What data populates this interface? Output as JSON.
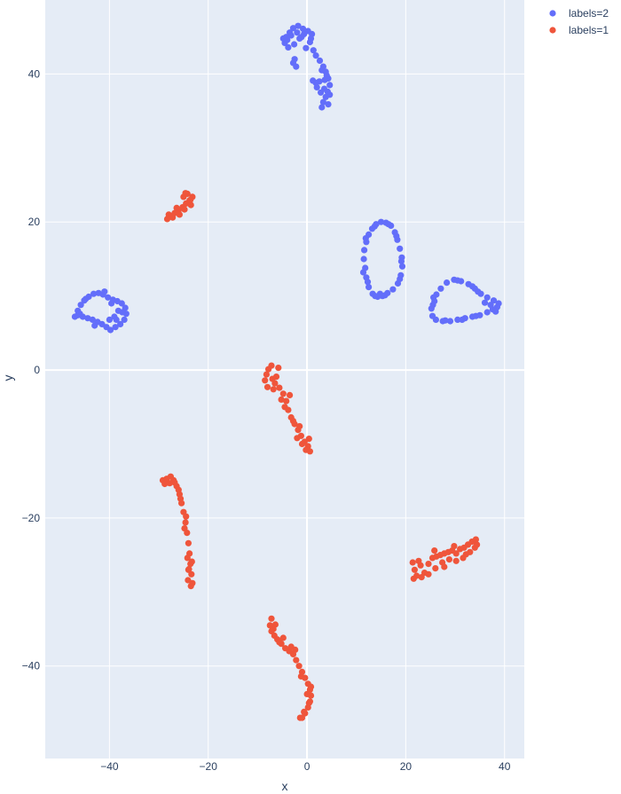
{
  "chart_data": {
    "type": "scatter",
    "title": "",
    "xlabel": "x",
    "ylabel": "y",
    "xlim": [
      -53,
      44
    ],
    "ylim": [
      -52.5,
      50
    ],
    "xticks": [
      -40,
      -20,
      0,
      20,
      40
    ],
    "yticks": [
      -40,
      -20,
      0,
      20,
      40
    ],
    "xtick_labels": [
      "−40",
      "−20",
      "0",
      "20",
      "40"
    ],
    "ytick_labels": [
      "−40",
      "−20",
      "0",
      "20",
      "40"
    ],
    "grid": true,
    "legend_position": "top-right",
    "series": [
      {
        "name": "labels=2",
        "color": "#636efa",
        "points": [
          [
            -4.5,
            44.2
          ],
          [
            -4.2,
            45.0
          ],
          [
            -3.5,
            45.6
          ],
          [
            -2.8,
            46.2
          ],
          [
            -1.8,
            46.5
          ],
          [
            -0.8,
            46.1
          ],
          [
            0.2,
            45.8
          ],
          [
            1.0,
            45.4
          ],
          [
            0.6,
            44.3
          ],
          [
            -0.2,
            43.5
          ],
          [
            -1.5,
            44.8
          ],
          [
            -2.6,
            44.0
          ],
          [
            -3.8,
            43.6
          ],
          [
            1.3,
            43.2
          ],
          [
            1.8,
            42.5
          ],
          [
            2.6,
            41.8
          ],
          [
            3.3,
            41.0
          ],
          [
            3.8,
            40.3
          ],
          [
            4.3,
            39.4
          ],
          [
            4.6,
            38.5
          ],
          [
            4.2,
            37.6
          ],
          [
            3.8,
            36.9
          ],
          [
            3.3,
            36.2
          ],
          [
            3.0,
            35.5
          ],
          [
            4.3,
            35.9
          ],
          [
            2.5,
            39.0
          ],
          [
            1.8,
            38.8
          ],
          [
            1.2,
            39.1
          ],
          [
            3.5,
            38.0
          ],
          [
            2.8,
            37.5
          ],
          [
            4.0,
            39.8
          ],
          [
            3.0,
            40.5
          ],
          [
            -2.5,
            42.0
          ],
          [
            -2.2,
            41.0
          ],
          [
            -2.8,
            41.5
          ],
          [
            -4.8,
            44.8
          ],
          [
            -4.0,
            44.6
          ],
          [
            -3.2,
            45.2
          ],
          [
            -2.0,
            45.6
          ],
          [
            -0.6,
            45.4
          ],
          [
            0.8,
            44.8
          ],
          [
            -1.1,
            45.0
          ],
          [
            2.0,
            38.2
          ],
          [
            4.6,
            37.2
          ],
          [
            3.6,
            39.2
          ],
          [
            11.8,
            13.8
          ],
          [
            11.5,
            15.0
          ],
          [
            11.6,
            16.2
          ],
          [
            12.0,
            17.3
          ],
          [
            12.5,
            18.3
          ],
          [
            13.2,
            19.1
          ],
          [
            14.0,
            19.7
          ],
          [
            15.0,
            20.0
          ],
          [
            16.0,
            19.9
          ],
          [
            17.0,
            19.5
          ],
          [
            17.8,
            18.6
          ],
          [
            18.3,
            17.6
          ],
          [
            18.8,
            16.4
          ],
          [
            19.2,
            15.2
          ],
          [
            19.3,
            14.0
          ],
          [
            19.0,
            12.8
          ],
          [
            18.4,
            11.7
          ],
          [
            17.4,
            10.9
          ],
          [
            16.3,
            10.4
          ],
          [
            15.3,
            10.0
          ],
          [
            14.3,
            9.9
          ],
          [
            13.3,
            10.3
          ],
          [
            12.5,
            11.2
          ],
          [
            12.0,
            12.5
          ],
          [
            13.8,
            10.0
          ],
          [
            14.8,
            10.3
          ],
          [
            11.4,
            13.2
          ],
          [
            11.9,
            17.8
          ],
          [
            13.7,
            19.4
          ],
          [
            16.5,
            19.7
          ],
          [
            18.1,
            18.1
          ],
          [
            19.1,
            14.7
          ],
          [
            18.8,
            12.3
          ],
          [
            15.8,
            10.1
          ],
          [
            12.3,
            11.9
          ],
          [
            25.8,
            9.3
          ],
          [
            25.2,
            8.3
          ],
          [
            25.4,
            7.3
          ],
          [
            26.1,
            6.8
          ],
          [
            27.5,
            6.6
          ],
          [
            29.0,
            6.6
          ],
          [
            30.5,
            6.8
          ],
          [
            32.0,
            7.0
          ],
          [
            33.5,
            7.2
          ],
          [
            35.0,
            7.4
          ],
          [
            36.5,
            7.8
          ],
          [
            37.6,
            8.2
          ],
          [
            38.5,
            8.5
          ],
          [
            38.8,
            9.0
          ],
          [
            37.8,
            9.4
          ],
          [
            36.5,
            9.8
          ],
          [
            35.2,
            10.3
          ],
          [
            34.0,
            11.0
          ],
          [
            32.7,
            11.6
          ],
          [
            31.2,
            12.0
          ],
          [
            29.8,
            12.2
          ],
          [
            28.3,
            11.8
          ],
          [
            27.1,
            11.0
          ],
          [
            26.2,
            10.2
          ],
          [
            25.6,
            9.8
          ],
          [
            38.2,
            7.9
          ],
          [
            37.2,
            8.8
          ],
          [
            34.6,
            10.6
          ],
          [
            30.5,
            12.1
          ],
          [
            25.5,
            8.8
          ],
          [
            28.0,
            6.7
          ],
          [
            31.4,
            6.8
          ],
          [
            34.2,
            7.3
          ],
          [
            36.0,
            9.1
          ],
          [
            33.5,
            11.3
          ],
          [
            -47.0,
            7.2
          ],
          [
            -46.4,
            8.0
          ],
          [
            -45.8,
            8.8
          ],
          [
            -45.1,
            9.4
          ],
          [
            -44.2,
            9.9
          ],
          [
            -43.2,
            10.3
          ],
          [
            -42.2,
            10.4
          ],
          [
            -41.3,
            10.2
          ],
          [
            -40.3,
            9.8
          ],
          [
            -39.3,
            9.5
          ],
          [
            -38.4,
            9.3
          ],
          [
            -37.5,
            9.0
          ],
          [
            -36.8,
            8.4
          ],
          [
            -36.6,
            7.6
          ],
          [
            -37.0,
            6.8
          ],
          [
            -37.8,
            6.2
          ],
          [
            -38.8,
            5.8
          ],
          [
            -39.8,
            5.4
          ],
          [
            -40.6,
            5.8
          ],
          [
            -41.5,
            6.2
          ],
          [
            -42.4,
            6.5
          ],
          [
            -43.4,
            6.8
          ],
          [
            -44.4,
            7.0
          ],
          [
            -45.4,
            7.2
          ],
          [
            -46.4,
            7.4
          ],
          [
            -39.0,
            7.2
          ],
          [
            -38.2,
            8.0
          ],
          [
            -40.0,
            6.8
          ],
          [
            -37.4,
            7.8
          ],
          [
            -43.0,
            6.0
          ],
          [
            -39.6,
            9.0
          ],
          [
            -44.8,
            9.6
          ],
          [
            -41.0,
            10.6
          ],
          [
            -46.0,
            7.6
          ],
          [
            -38.6,
            6.8
          ]
        ]
      },
      {
        "name": "labels=1",
        "color": "#ef553b",
        "points": [
          [
            -28.3,
            20.4
          ],
          [
            -27.6,
            20.8
          ],
          [
            -26.8,
            21.2
          ],
          [
            -26.0,
            21.6
          ],
          [
            -25.2,
            22.0
          ],
          [
            -24.5,
            22.5
          ],
          [
            -23.8,
            22.9
          ],
          [
            -23.2,
            23.4
          ],
          [
            -23.5,
            22.3
          ],
          [
            -24.2,
            23.8
          ],
          [
            -25.0,
            23.4
          ],
          [
            -24.8,
            21.7
          ],
          [
            -27.2,
            20.6
          ],
          [
            -25.8,
            21.0
          ],
          [
            -23.6,
            23.0
          ],
          [
            -24.6,
            23.9
          ],
          [
            -28.0,
            21.0
          ],
          [
            -26.4,
            21.9
          ],
          [
            -7.2,
            0.6
          ],
          [
            -7.8,
            0.1
          ],
          [
            -8.2,
            -0.6
          ],
          [
            -8.5,
            -1.4
          ],
          [
            -7.0,
            -1.2
          ],
          [
            -6.5,
            -1.8
          ],
          [
            -5.6,
            -2.4
          ],
          [
            -4.8,
            -3.2
          ],
          [
            -4.2,
            -4.2
          ],
          [
            -3.8,
            -5.4
          ],
          [
            -3.2,
            -6.4
          ],
          [
            -2.5,
            -7.3
          ],
          [
            -1.8,
            -8.1
          ],
          [
            -1.2,
            -8.9
          ],
          [
            -0.5,
            -9.7
          ],
          [
            0.2,
            -10.3
          ],
          [
            0.6,
            -11.0
          ],
          [
            -0.2,
            -10.8
          ],
          [
            -4.5,
            -5.0
          ],
          [
            -5.2,
            -4.0
          ],
          [
            -2.8,
            -6.9
          ],
          [
            -1.5,
            -7.6
          ],
          [
            -6.2,
            -0.9
          ],
          [
            -8.0,
            -2.3
          ],
          [
            -3.5,
            -3.4
          ],
          [
            0.4,
            -9.3
          ],
          [
            -1.0,
            -10.0
          ],
          [
            -5.8,
            0.3
          ],
          [
            -2.0,
            -9.2
          ],
          [
            -6.8,
            -2.6
          ],
          [
            -29.2,
            -14.9
          ],
          [
            -28.4,
            -14.7
          ],
          [
            -27.6,
            -14.4
          ],
          [
            -27.0,
            -14.9
          ],
          [
            -26.4,
            -15.7
          ],
          [
            -25.8,
            -16.8
          ],
          [
            -25.4,
            -18.0
          ],
          [
            -25.0,
            -19.2
          ],
          [
            -24.6,
            -20.6
          ],
          [
            -24.3,
            -22.0
          ],
          [
            -24.0,
            -23.4
          ],
          [
            -23.8,
            -24.8
          ],
          [
            -23.6,
            -26.2
          ],
          [
            -23.4,
            -27.6
          ],
          [
            -23.2,
            -28.8
          ],
          [
            -23.5,
            -29.2
          ],
          [
            -24.0,
            -27.0
          ],
          [
            -24.2,
            -25.4
          ],
          [
            -26.8,
            -15.2
          ],
          [
            -25.6,
            -17.4
          ],
          [
            -24.8,
            -21.4
          ],
          [
            -23.9,
            -26.9
          ],
          [
            -27.8,
            -15.3
          ],
          [
            -24.5,
            -19.8
          ],
          [
            -23.3,
            -25.9
          ],
          [
            -24.1,
            -28.4
          ],
          [
            -26.0,
            -16.2
          ],
          [
            -28.8,
            -15.4
          ],
          [
            21.4,
            -26.0
          ],
          [
            21.8,
            -27.0
          ],
          [
            22.2,
            -27.8
          ],
          [
            23.0,
            -26.4
          ],
          [
            23.8,
            -27.4
          ],
          [
            24.6,
            -26.2
          ],
          [
            25.4,
            -25.4
          ],
          [
            26.2,
            -25.2
          ],
          [
            27.0,
            -25.0
          ],
          [
            27.8,
            -24.8
          ],
          [
            28.6,
            -24.6
          ],
          [
            29.4,
            -24.4
          ],
          [
            30.2,
            -24.8
          ],
          [
            31.0,
            -24.2
          ],
          [
            31.8,
            -24.0
          ],
          [
            32.6,
            -23.6
          ],
          [
            33.4,
            -23.2
          ],
          [
            34.2,
            -22.9
          ],
          [
            34.0,
            -24.0
          ],
          [
            33.0,
            -24.6
          ],
          [
            31.6,
            -25.4
          ],
          [
            30.2,
            -25.8
          ],
          [
            28.8,
            -25.6
          ],
          [
            27.4,
            -26.0
          ],
          [
            26.0,
            -26.8
          ],
          [
            24.6,
            -27.6
          ],
          [
            22.6,
            -25.8
          ],
          [
            23.2,
            -28.0
          ],
          [
            32.2,
            -24.9
          ],
          [
            29.8,
            -23.8
          ],
          [
            25.8,
            -24.4
          ],
          [
            21.6,
            -28.2
          ],
          [
            34.4,
            -23.6
          ],
          [
            27.8,
            -26.6
          ],
          [
            -7.2,
            -33.6
          ],
          [
            -7.5,
            -34.5
          ],
          [
            -7.2,
            -35.3
          ],
          [
            -6.6,
            -35.9
          ],
          [
            -6.0,
            -36.4
          ],
          [
            -5.2,
            -37.0
          ],
          [
            -4.4,
            -37.6
          ],
          [
            -3.6,
            -38.0
          ],
          [
            -2.8,
            -38.4
          ],
          [
            -2.2,
            -39.2
          ],
          [
            -1.6,
            -40.0
          ],
          [
            -1.0,
            -40.8
          ],
          [
            -0.4,
            -41.6
          ],
          [
            0.2,
            -42.4
          ],
          [
            0.6,
            -43.2
          ],
          [
            0.8,
            -44.0
          ],
          [
            0.6,
            -44.8
          ],
          [
            0.2,
            -45.6
          ],
          [
            -0.4,
            -46.4
          ],
          [
            -1.0,
            -47.0
          ],
          [
            -0.6,
            -46.2
          ],
          [
            0.4,
            -45.0
          ],
          [
            -6.4,
            -34.4
          ],
          [
            -4.8,
            -36.2
          ],
          [
            -2.4,
            -37.8
          ],
          [
            -1.2,
            -41.4
          ],
          [
            0.0,
            -43.8
          ],
          [
            -3.2,
            -37.4
          ],
          [
            -6.8,
            -35.0
          ],
          [
            -1.4,
            -47.0
          ],
          [
            0.8,
            -42.8
          ],
          [
            -5.6,
            -36.8
          ]
        ]
      }
    ]
  }
}
